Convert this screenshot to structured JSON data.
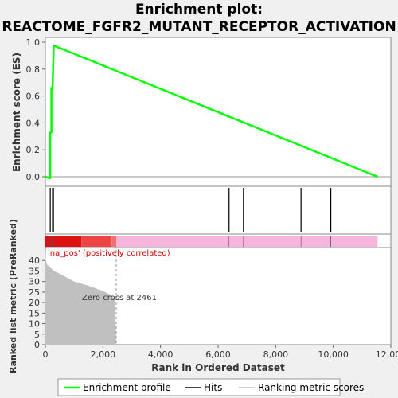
{
  "chart_data": {
    "type": "line",
    "title_line1": "Enrichment plot:",
    "title_line2": "REACTOME_FGFR2_MUTANT_RECEPTOR_ACTIVATION",
    "es_ylabel": "Enrichment score (ES)",
    "metric_ylabel": "Ranked list metric (PreRanked)",
    "xlabel": "Rank in Ordered Dataset",
    "xlim": [
      0,
      12000
    ],
    "x_ticks": [
      0,
      2000,
      4000,
      6000,
      8000,
      10000,
      12000
    ],
    "x_tick_labels": [
      "0",
      "2,000",
      "4,000",
      "6,000",
      "8,000",
      "10,000",
      "12,000"
    ],
    "es_ylim": [
      -0.05,
      1.0
    ],
    "es_ticks": [
      0.0,
      0.2,
      0.4,
      0.6,
      0.8,
      1.0
    ],
    "es_tick_labels": [
      "0.0",
      "0.2",
      "0.4",
      "0.6",
      "0.8",
      "1.0"
    ],
    "metric_ylim": [
      0,
      45
    ],
    "metric_ticks": [
      0,
      5,
      10,
      15,
      20,
      25,
      30,
      35,
      40
    ],
    "metric_tick_labels": [
      "0",
      "5",
      "10",
      "15",
      "20",
      "25",
      "30",
      "35",
      "40"
    ],
    "enrichment_profile": {
      "color": "#00ff00",
      "x": [
        0,
        150,
        170,
        170,
        210,
        210,
        250,
        250,
        290,
        11540
      ],
      "y": [
        0.0,
        -0.01,
        -0.01,
        0.33,
        0.33,
        0.66,
        0.66,
        0.65,
        0.975,
        0.0
      ]
    },
    "hits": [
      170,
      250,
      280,
      6380,
      6880,
      8880,
      9900,
      9915
    ],
    "ranked_metric": {
      "color": "#c0c0c0",
      "x": [
        0,
        20,
        60,
        150,
        300,
        600,
        1000,
        1500,
        2000,
        2300,
        2420,
        2461
      ],
      "y": [
        45,
        40,
        38,
        37,
        35,
        33,
        30,
        28,
        25.5,
        23.5,
        21,
        0
      ]
    },
    "zero_cross_label": "Zero cross at 2461",
    "zero_cross_x": 2461,
    "positive_label": "'na_pos' (positively correlated)",
    "colorbar_segments": [
      {
        "from": 0,
        "to": 1250,
        "color": "#dd1111"
      },
      {
        "from": 1250,
        "to": 2300,
        "color": "#ee4444"
      },
      {
        "from": 2300,
        "to": 2461,
        "color": "#f07070"
      },
      {
        "from": 2461,
        "to": 11540,
        "color": "#f7b4dc"
      }
    ],
    "legend": [
      {
        "label": "Enrichment profile",
        "color": "#00ff00"
      },
      {
        "label": "Hits",
        "color": "#000000"
      },
      {
        "label": "Ranking metric scores",
        "color": "#c0c0c0"
      }
    ]
  }
}
